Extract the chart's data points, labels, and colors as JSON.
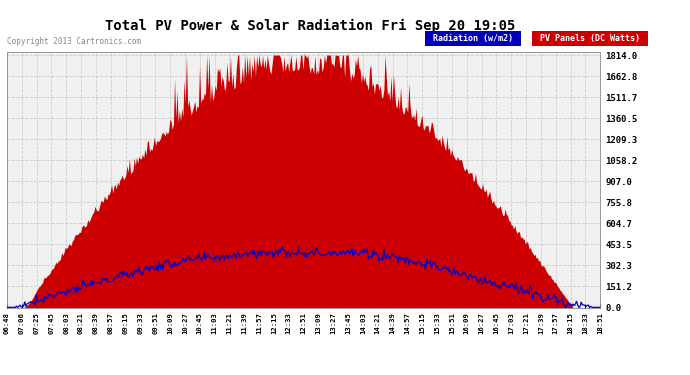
{
  "title": "Total PV Power & Solar Radiation Fri Sep 20 19:05",
  "copyright": "Copyright 2013 Cartronics.com",
  "legend_radiation": "Radiation (w/m2)",
  "legend_pv": "PV Panels (DC Watts)",
  "legend_radiation_bg": "#0000bb",
  "legend_pv_bg": "#cc0000",
  "y_ticks": [
    0.0,
    151.2,
    302.3,
    453.5,
    604.7,
    755.8,
    907.0,
    1058.2,
    1209.3,
    1360.5,
    1511.7,
    1662.8,
    1814.0
  ],
  "y_max": 1814.0,
  "y_min": 0.0,
  "bg_color": "#ffffff",
  "plot_bg_color": "#f0f0f0",
  "grid_color": "#cccccc",
  "radiation_color": "#0000cc",
  "pv_color": "#cc0000",
  "pv_fill_color": "#cc0000",
  "n_points": 500
}
